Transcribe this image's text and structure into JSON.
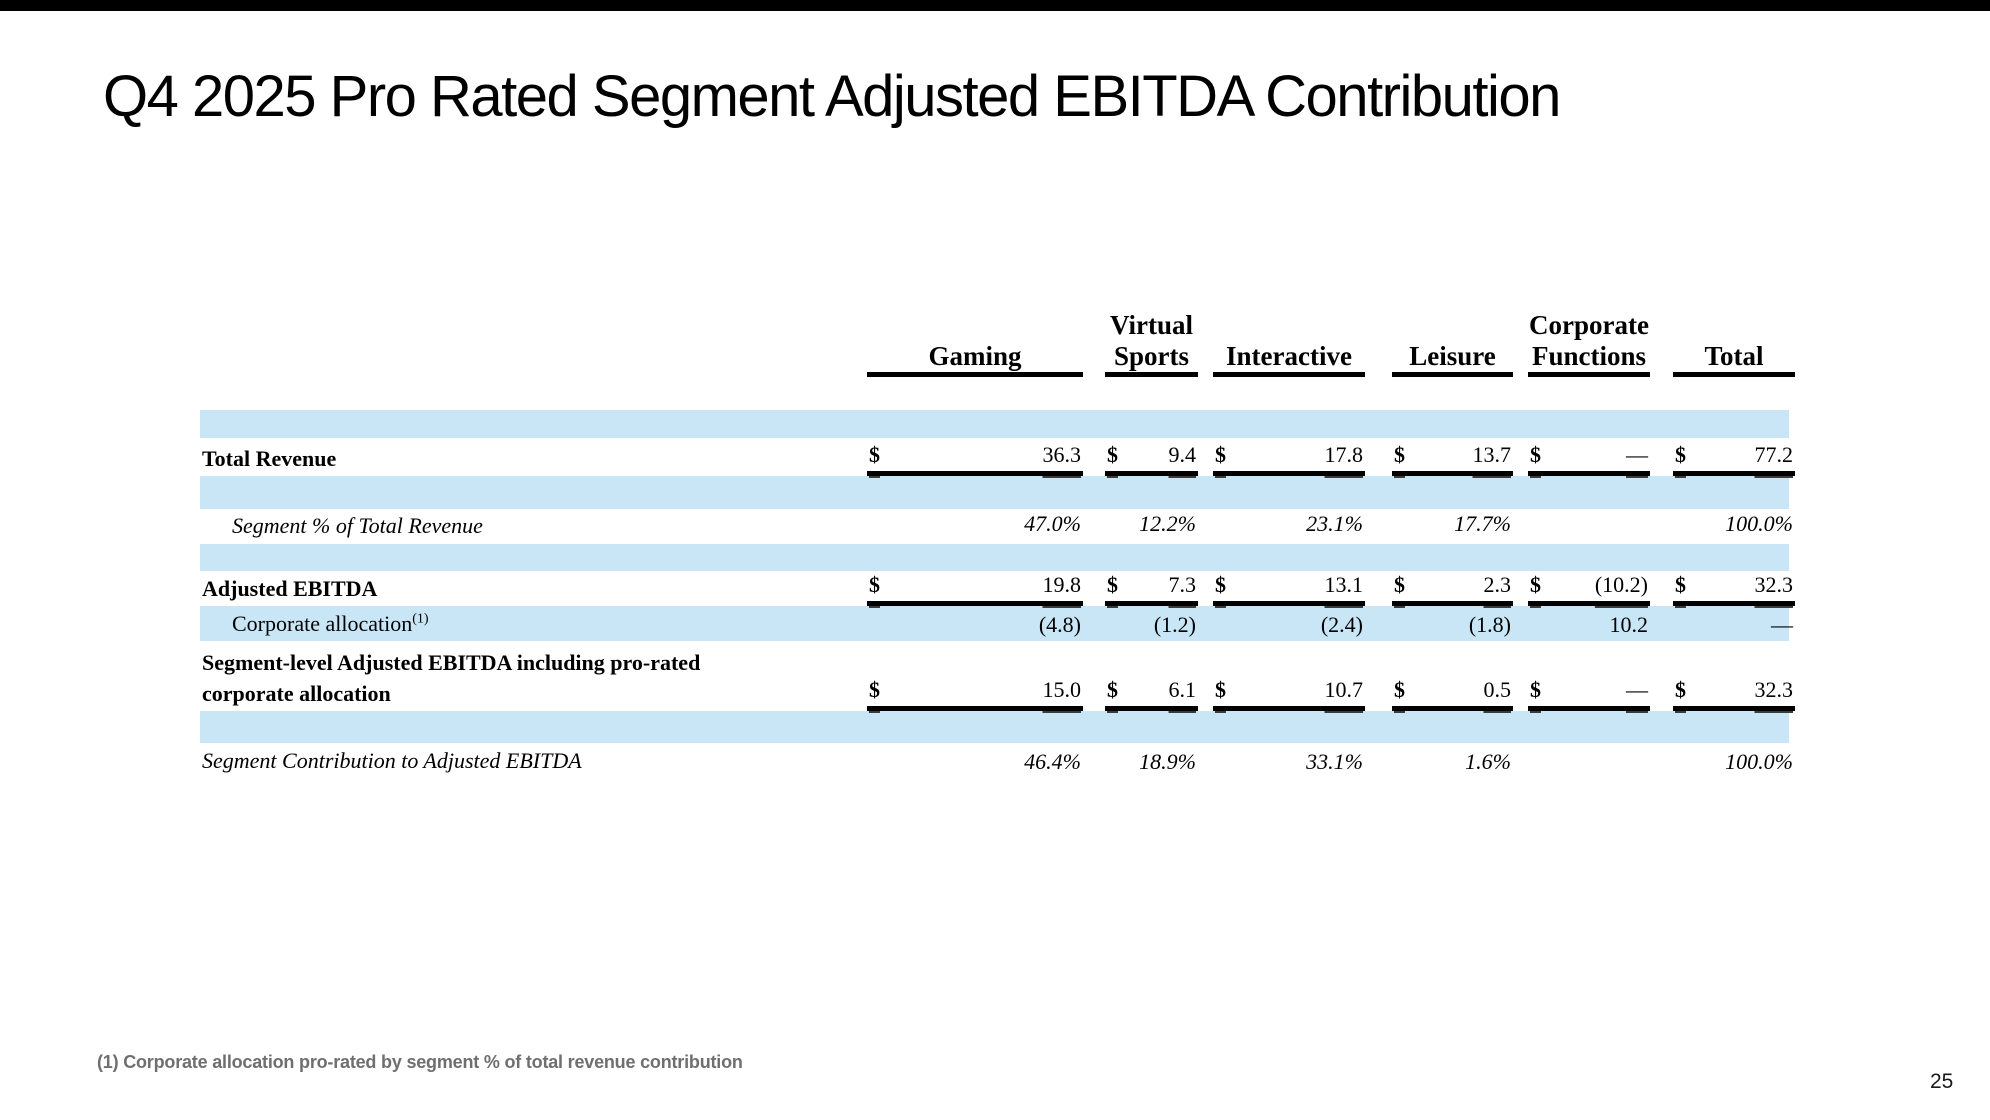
{
  "slide": {
    "title": "Q4 2025 Pro Rated Segment Adjusted EBITDA Contribution",
    "footnote": "(1) Corporate allocation pro-rated by segment % of total revenue contribution",
    "page_number": "25",
    "top_bar_color": "#000000"
  },
  "table": {
    "currency_symbol": "$",
    "stripe_color": "#C9E6F7",
    "rule_color": "#000000",
    "header": {
      "gaming": "Gaming",
      "virtual_sports_line1": "Virtual",
      "virtual_sports_line2": "Sports",
      "interactive": "Interactive",
      "leisure": "Leisure",
      "corporate_functions_line1": "Corporate",
      "corporate_functions_line2": "Functions",
      "total": "Total"
    },
    "rows": {
      "total_revenue": {
        "label": "Total Revenue",
        "values": [
          "36.3",
          "9.4",
          "17.8",
          "13.7",
          "—",
          "77.2"
        ]
      },
      "segment_pct_of_revenue": {
        "label": "Segment % of Total Revenue",
        "values": [
          "47.0%",
          "12.2%",
          "23.1%",
          "17.7%",
          "",
          "100.0%"
        ]
      },
      "adjusted_ebitda": {
        "label": "Adjusted EBITDA",
        "values": [
          "19.8",
          "7.3",
          "13.1",
          "2.3",
          "(10.2)",
          "32.3"
        ]
      },
      "corporate_allocation": {
        "label": "Corporate allocation",
        "footnote_ref": "(1)",
        "values": [
          "(4.8)",
          "(1.2)",
          "(2.4)",
          "(1.8)",
          "10.2",
          "—"
        ]
      },
      "segment_level_ebitda": {
        "label_line1": "Segment-level Adjusted EBITDA including pro-rated",
        "label_line2": "corporate allocation",
        "values": [
          "15.0",
          "6.1",
          "10.7",
          "0.5",
          "—",
          "32.3"
        ]
      },
      "segment_contribution": {
        "label": "Segment Contribution to Adjusted EBITDA",
        "values": [
          "46.4%",
          "18.9%",
          "33.1%",
          "1.6%",
          "",
          "100.0%"
        ]
      }
    }
  }
}
